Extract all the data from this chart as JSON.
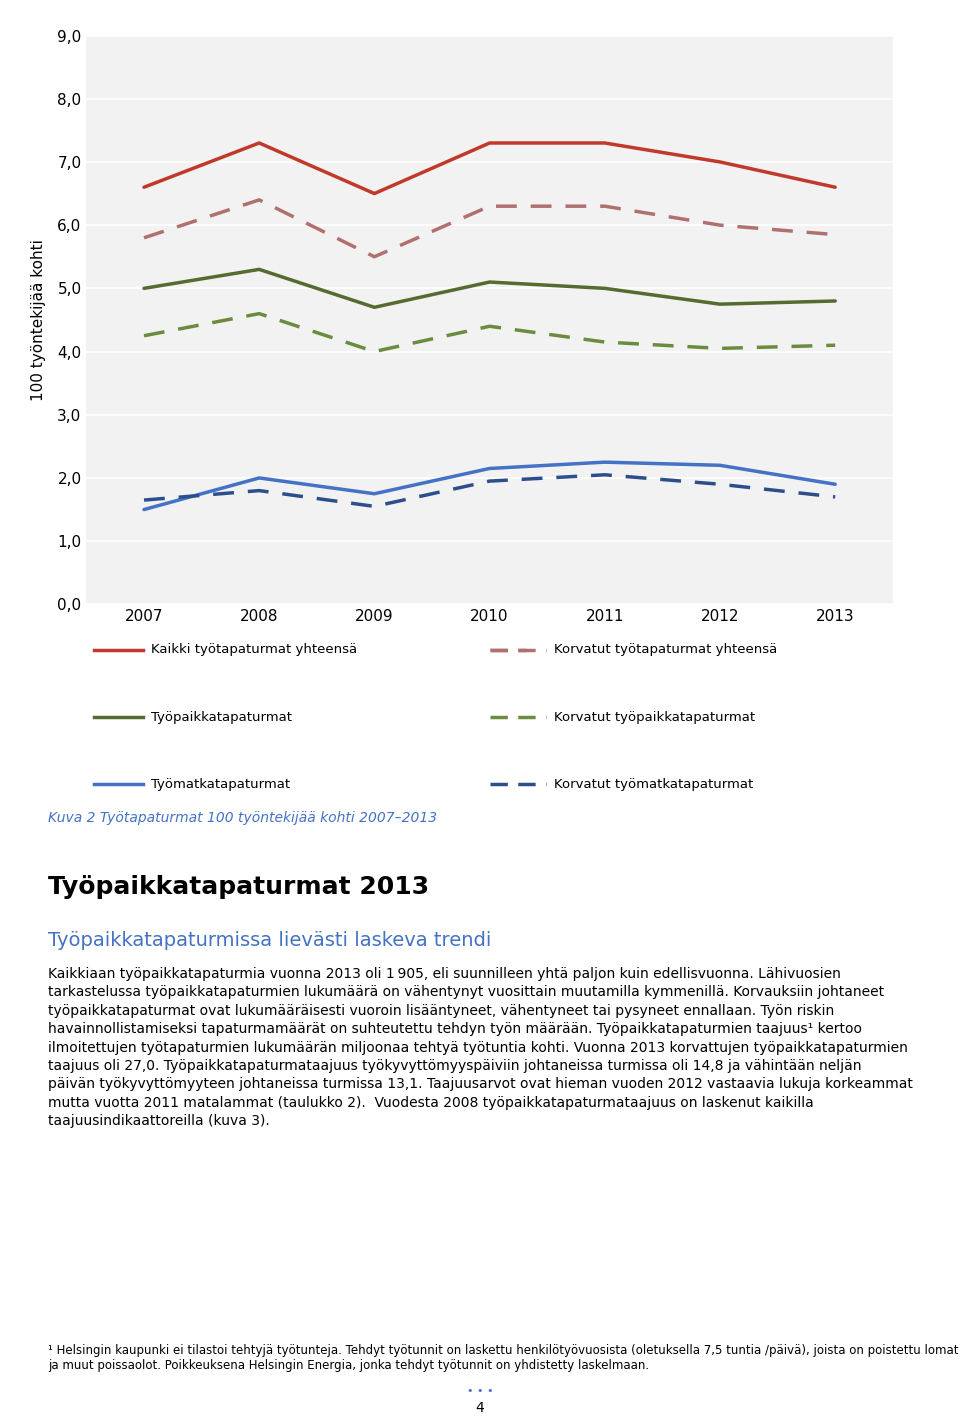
{
  "years": [
    2007,
    2008,
    2009,
    2010,
    2011,
    2012,
    2013
  ],
  "kaikki_yhteensa": [
    6.6,
    7.3,
    6.5,
    7.3,
    7.3,
    7.0,
    6.6
  ],
  "korvatut_yhteensa": [
    5.8,
    6.4,
    5.5,
    6.3,
    6.3,
    6.0,
    5.85
  ],
  "tyopaikkatapaturmat": [
    5.0,
    5.3,
    4.7,
    5.1,
    5.0,
    4.75,
    4.8
  ],
  "korvatut_tyopaikka": [
    4.25,
    4.6,
    4.0,
    4.4,
    4.15,
    4.05,
    4.1
  ],
  "tyomatkatapaturmat": [
    1.5,
    2.0,
    1.75,
    2.15,
    2.25,
    2.2,
    1.9
  ],
  "korvatut_tyomatka": [
    1.65,
    1.8,
    1.55,
    1.95,
    2.05,
    1.9,
    1.7
  ],
  "color_kaikki": "#c0392b",
  "color_korvatut_yhteensa": "#b07070",
  "color_tyopaikka": "#556b2f",
  "color_korvatut_tyopaikka": "#6b8c3e",
  "color_tyomatka": "#4472c4",
  "color_korvatut_tyomatka": "#2c4f8c",
  "ylabel": "100 työntekijää kohti",
  "ylim": [
    0.0,
    9.0
  ],
  "yticks": [
    0.0,
    1.0,
    2.0,
    3.0,
    4.0,
    5.0,
    6.0,
    7.0,
    8.0,
    9.0
  ],
  "ytick_labels": [
    "0,0",
    "1,0",
    "2,0",
    "3,0",
    "4,0",
    "5,0",
    "6,0",
    "7,0",
    "8,0",
    "9,0"
  ],
  "caption": "Kuva 2 Työtapaturmat 100 työntekijää kohti 2007–2013",
  "section_title": "Työpaikkatapaturmat 2013",
  "subtitle": "Työpaikkatapaturmissa lievästi laskeva trendi",
  "body_text": "Kaikkiaan työpaikkatapaturmia vuonna 2013 oli 1 905, eli suunnilleen yhtä paljon kuin edellisvuonna. Lähivuosien tarkastelussa työpaikkatapaturmien lukumäärä on vähentynyt vuosittain muutamilla kymmenillä. Korvauksiin johtaneet työpaikkatapaturmat ovat lukumääräisesti vuoroin lisääntyneet, vähentyneet tai pysyneet ennallaan. Työn riskin havainnollistamiseksi tapaturmamäärät on suhteutettu tehdyn työn määrään. Työpaikkatapaturmien taajuus¹ kertoo ilmoitettujen työtapaturmien lukumäärän miljoonaa tehtyä työtuntia kohti. Vuonna 2013 korvattujen työpaikkatapaturmien taajuus oli 27,0. Työpaikkatapaturmataajuus työkyvyttömyyspäiviin johtaneissa turmissa oli 14,8 ja vähintään neljän päivän työkyvyttömyyteen johtaneissa turmissa 13,1. Taajuusarvot ovat hieman vuoden 2012 vastaavia lukuja korkeammat mutta vuotta 2011 matalammat (taulukko 2).  Vuodesta 2008 työpaikkatapaturmataajuus on laskenut kaikilla taajuusindikaattoreilla (kuva 3).",
  "footnote": "¹ Helsingin kaupunki ei tilastoi tehtyjä työtunteja. Tehdyt työtunnit on laskettu henkilötyövuosista (oletuksella 7,5 tuntia /päivä), joista on poistettu lomat ja muut poissaolot. Poikkeuksena Helsingin Energia, jonka tehdyt työtunnit on yhdistetty laskelmaan.",
  "page_number": "4",
  "legend_labels": [
    "Kaikki työtapaturmat yhteensä",
    "Korvatut työtapaturmat yhteensä",
    "Työpaikkatapaturmat",
    "Korvatut työpaikkatapaturmat",
    "Työmatkatapaturmat",
    "Korvatut työmatkatapaturmat"
  ],
  "bg_color": "#f2f2f2"
}
